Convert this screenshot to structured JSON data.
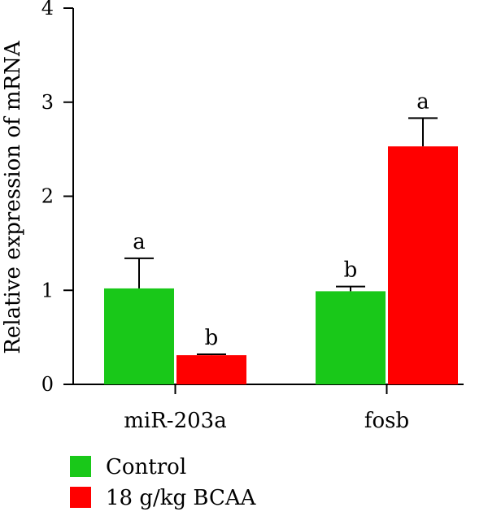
{
  "chart_data": {
    "type": "bar",
    "ylabel": "Relative expression of mRNA",
    "xlabel": "",
    "ylim": [
      0,
      4
    ],
    "yticks": [
      0,
      1,
      2,
      3,
      4
    ],
    "categories": [
      "miR-203a",
      "fosb"
    ],
    "series": [
      {
        "name": "Control",
        "color": "#19c819",
        "values": [
          1.02,
          0.99
        ],
        "errors": [
          0.32,
          0.05
        ],
        "labels": [
          "a",
          "b"
        ]
      },
      {
        "name": "18 g/kg BCAA",
        "color": "#ff0000",
        "values": [
          0.31,
          2.53
        ],
        "errors": [
          0.01,
          0.3
        ],
        "labels": [
          "b",
          "a"
        ]
      }
    ],
    "legend_position": "bottom-left",
    "grid": false
  }
}
